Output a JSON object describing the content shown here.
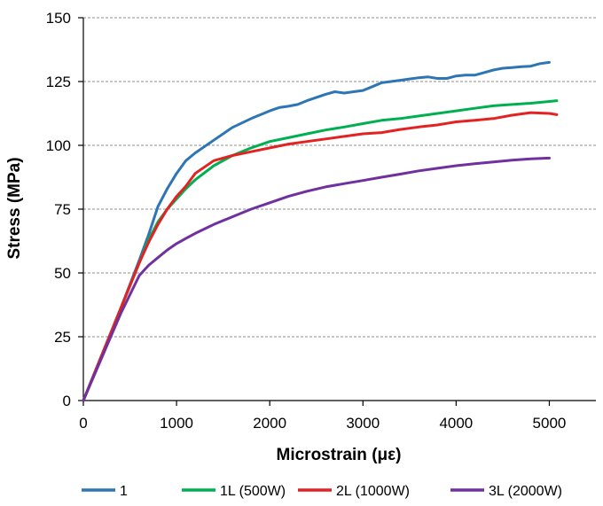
{
  "chart_data": {
    "type": "line",
    "xlabel": "Microstrain (με)",
    "ylabel": "Stress (MPa)",
    "xlim": [
      0,
      5500
    ],
    "ylim": [
      0,
      150
    ],
    "xticks": [
      0,
      1000,
      2000,
      3000,
      4000,
      5000
    ],
    "yticks": [
      0,
      25,
      50,
      75,
      100,
      125,
      150
    ],
    "grid": "horizontal-dashed",
    "legend_position": "bottom",
    "series": [
      {
        "name": "1",
        "color": "#2E75B6",
        "x": [
          0,
          200,
          400,
          600,
          700,
          800,
          900,
          1000,
          1100,
          1200,
          1400,
          1600,
          1800,
          2000,
          2100,
          2200,
          2300,
          2400,
          2600,
          2700,
          2800,
          2900,
          3000,
          3100,
          3200,
          3400,
          3500,
          3600,
          3700,
          3800,
          3900,
          4000,
          4100,
          4200,
          4300,
          4400,
          4500,
          4600,
          4700,
          4800,
          4900,
          5000
        ],
        "y": [
          0,
          18,
          36,
          55,
          65,
          76,
          83,
          89,
          94,
          97,
          102,
          107,
          110.5,
          113.5,
          114.8,
          115.3,
          116,
          117.5,
          120,
          121,
          120.5,
          121,
          121.5,
          123,
          124.5,
          125.5,
          126,
          126.5,
          126.8,
          126.2,
          126.2,
          127.2,
          127.5,
          127.5,
          128.5,
          129.5,
          130.2,
          130.5,
          130.8,
          131,
          132,
          132.5
        ]
      },
      {
        "name": "1L (500W)",
        "color": "#00B050",
        "x": [
          0,
          200,
          400,
          600,
          700,
          800,
          900,
          1000,
          1100,
          1200,
          1400,
          1600,
          1800,
          2000,
          2200,
          2400,
          2600,
          2800,
          3000,
          3200,
          3400,
          3600,
          3800,
          4000,
          4200,
          4400,
          4600,
          4800,
          5000,
          5080
        ],
        "y": [
          0,
          18,
          36,
          54,
          63,
          70,
          75,
          79,
          83,
          86.5,
          92,
          96,
          99,
          101.5,
          103,
          104.5,
          106,
          107.2,
          108.5,
          109.8,
          110.5,
          111.5,
          112.5,
          113.5,
          114.5,
          115.5,
          116,
          116.5,
          117.2,
          117.5
        ]
      },
      {
        "name": "2L (1000W)",
        "color": "#E32222",
        "x": [
          0,
          200,
          400,
          600,
          700,
          800,
          900,
          1000,
          1100,
          1200,
          1400,
          1600,
          1800,
          2000,
          2200,
          2400,
          2600,
          2800,
          3000,
          3200,
          3400,
          3600,
          3800,
          4000,
          4200,
          4400,
          4600,
          4800,
          5000,
          5080
        ],
        "y": [
          0,
          18,
          36,
          54,
          62,
          69,
          75,
          80,
          84,
          89,
          94,
          96,
          97.5,
          99,
          100.5,
          101.5,
          102.5,
          103.5,
          104.5,
          105,
          106.2,
          107.2,
          108,
          109.2,
          109.8,
          110.5,
          111.8,
          112.8,
          112.5,
          112
        ]
      },
      {
        "name": "3L (2000W)",
        "color": "#7030A0",
        "x": [
          0,
          200,
          400,
          600,
          700,
          800,
          900,
          1000,
          1100,
          1200,
          1400,
          1600,
          1800,
          2000,
          2200,
          2400,
          2600,
          2800,
          3000,
          3200,
          3400,
          3600,
          3800,
          4000,
          4200,
          4400,
          4600,
          4800,
          5000
        ],
        "y": [
          0,
          17,
          34,
          49,
          53,
          56,
          59,
          61.5,
          63.5,
          65.5,
          69,
          72,
          75,
          77.5,
          80,
          82,
          83.7,
          85,
          86.2,
          87.5,
          88.7,
          90,
          91,
          92,
          92.8,
          93.5,
          94.2,
          94.7,
          95
        ]
      }
    ]
  }
}
